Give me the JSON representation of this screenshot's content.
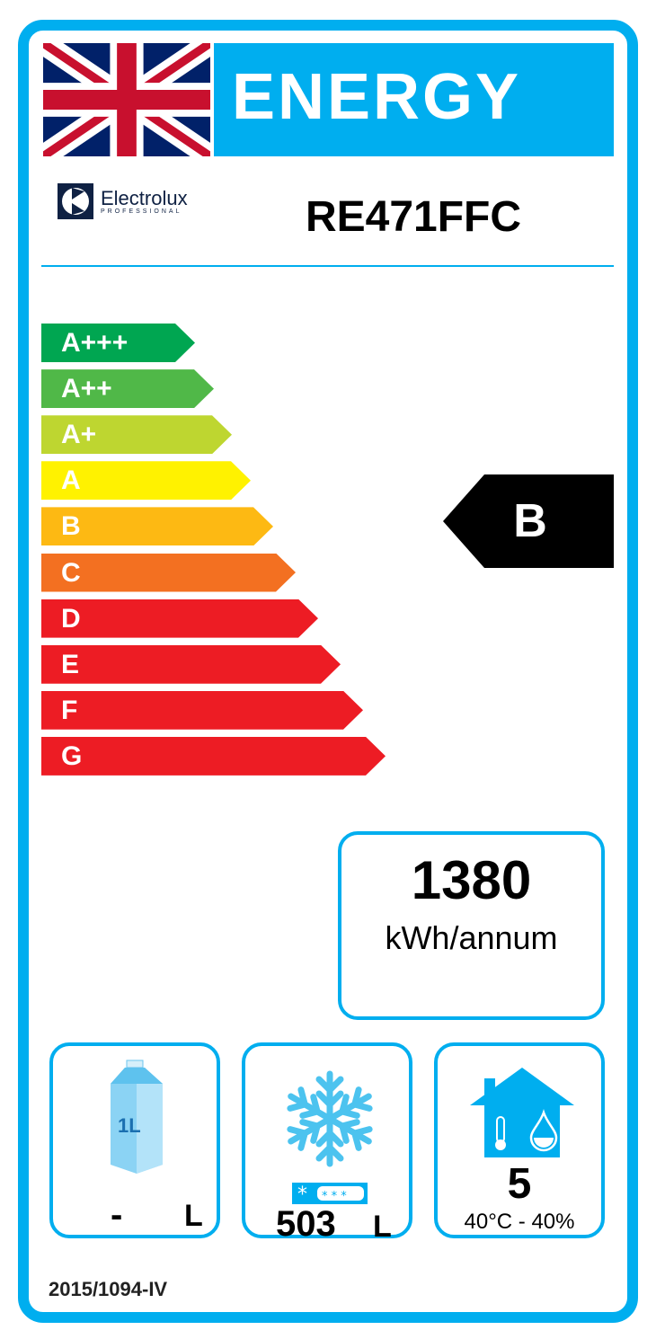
{
  "header": {
    "title": "ENERGY",
    "country_flag": "uk-flag-icon"
  },
  "brand": {
    "name": "Electrolux",
    "subtitle": "PROFESSIONAL"
  },
  "model": "RE471FFC",
  "scale": [
    {
      "label": "A+++",
      "color": "#00a651"
    },
    {
      "label": "A++",
      "color": "#50b848"
    },
    {
      "label": "A+",
      "color": "#bed630"
    },
    {
      "label": "A",
      "color": "#fff200"
    },
    {
      "label": "B",
      "color": "#fdb913"
    },
    {
      "label": "C",
      "color": "#f37021"
    },
    {
      "label": "D",
      "color": "#ed1c24"
    },
    {
      "label": "E",
      "color": "#ed1c24"
    },
    {
      "label": "F",
      "color": "#ed1c24"
    },
    {
      "label": "G",
      "color": "#ed1c24"
    }
  ],
  "rating": "B",
  "consumption": {
    "value": "1380",
    "unit": "kWh/annum"
  },
  "chill": {
    "icon": "milk-carton-icon",
    "carton_label": "1L",
    "value": "-",
    "unit": "L"
  },
  "frozen": {
    "icon": "snowflake-icon",
    "value": "503",
    "unit": "L"
  },
  "climate": {
    "icon": "house-climate-icon",
    "class": "5",
    "conditions": "40°C - 40%"
  },
  "regulation": "2015/1094-IV",
  "accent_color": "#00aeef"
}
